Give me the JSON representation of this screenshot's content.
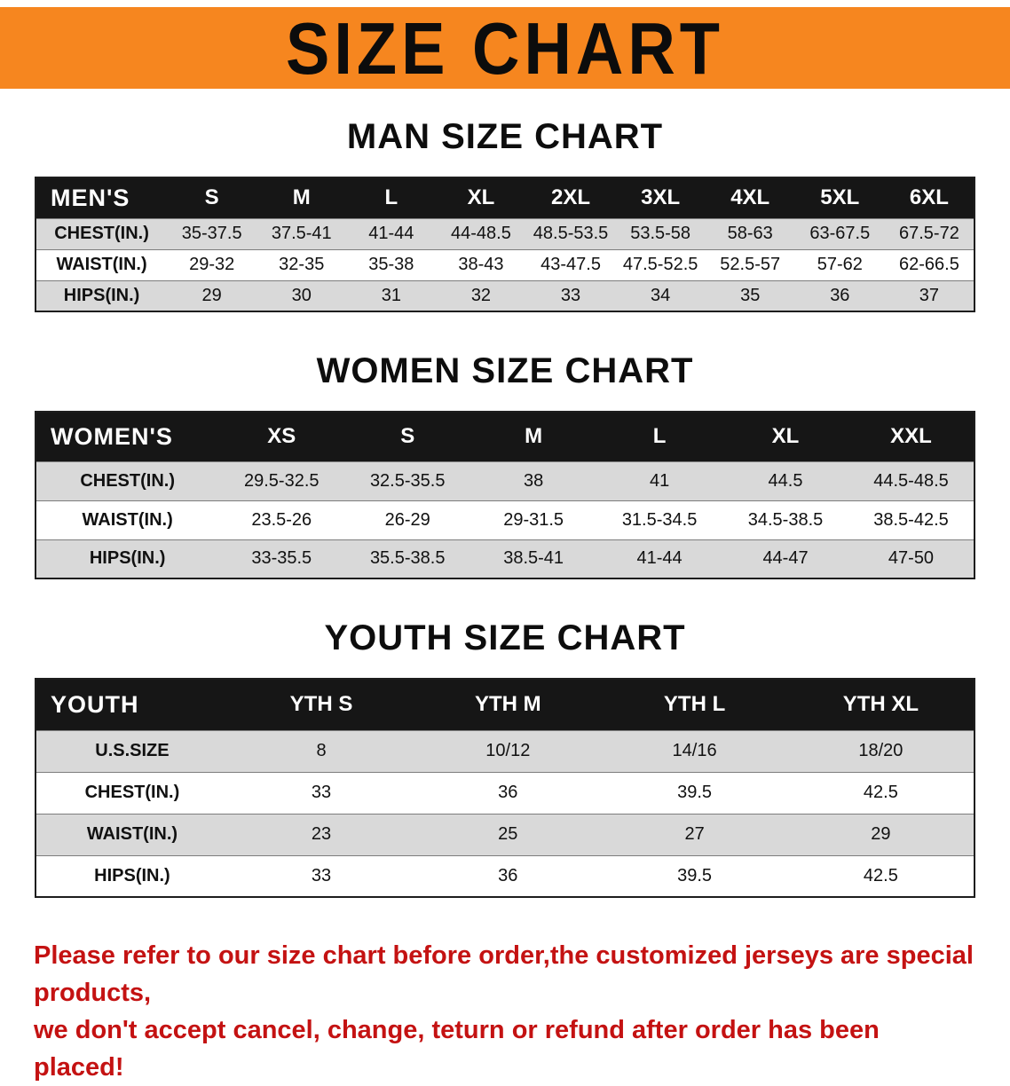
{
  "banner": {
    "title": "SIZE CHART"
  },
  "sections": [
    {
      "heading": "MAN SIZE CHART",
      "table": {
        "header": [
          "MEN'S",
          "S",
          "M",
          "L",
          "XL",
          "2XL",
          "3XL",
          "4XL",
          "5XL",
          "6XL"
        ],
        "rows": [
          [
            "CHEST(IN.)",
            "35-37.5",
            "37.5-41",
            "41-44",
            "44-48.5",
            "48.5-53.5",
            "53.5-58",
            "58-63",
            "63-67.5",
            "67.5-72"
          ],
          [
            "WAIST(IN.)",
            "29-32",
            "32-35",
            "35-38",
            "38-43",
            "43-47.5",
            "47.5-52.5",
            "52.5-57",
            "57-62",
            "62-66.5"
          ],
          [
            "HIPS(IN.)",
            "29",
            "30",
            "31",
            "32",
            "33",
            "34",
            "35",
            "36",
            "37"
          ]
        ]
      }
    },
    {
      "heading": "WOMEN SIZE CHART",
      "table": {
        "header": [
          "WOMEN'S",
          "XS",
          "S",
          "M",
          "L",
          "XL",
          "XXL"
        ],
        "rows": [
          [
            "CHEST(IN.)",
            "29.5-32.5",
            "32.5-35.5",
            "38",
            "41",
            "44.5",
            "44.5-48.5"
          ],
          [
            "WAIST(IN.)",
            "23.5-26",
            "26-29",
            "29-31.5",
            "31.5-34.5",
            "34.5-38.5",
            "38.5-42.5"
          ],
          [
            "HIPS(IN.)",
            "33-35.5",
            "35.5-38.5",
            "38.5-41",
            "41-44",
            "44-47",
            "47-50"
          ]
        ]
      }
    },
    {
      "heading": "YOUTH SIZE CHART",
      "table": {
        "header": [
          "YOUTH",
          "YTH S",
          "YTH M",
          "YTH L",
          "YTH XL"
        ],
        "rows": [
          [
            "U.S.SIZE",
            "8",
            "10/12",
            "14/16",
            "18/20"
          ],
          [
            "CHEST(IN.)",
            "33",
            "36",
            "39.5",
            "42.5"
          ],
          [
            "WAIST(IN.)",
            "23",
            "25",
            "27",
            "29"
          ],
          [
            "HIPS(IN.)",
            "33",
            "36",
            "39.5",
            "42.5"
          ]
        ]
      }
    }
  ],
  "footer": {
    "lines": [
      "Please refer to our size chart before order,the customized jerseys are special products,",
      "we don't accept cancel, change, teturn or refund after order has been placed!"
    ]
  },
  "colors": {
    "banner_bg": "#F6861F",
    "table_header_bg": "#161616",
    "row_alt": "#D9D9D9",
    "footer_text": "#C41212"
  }
}
